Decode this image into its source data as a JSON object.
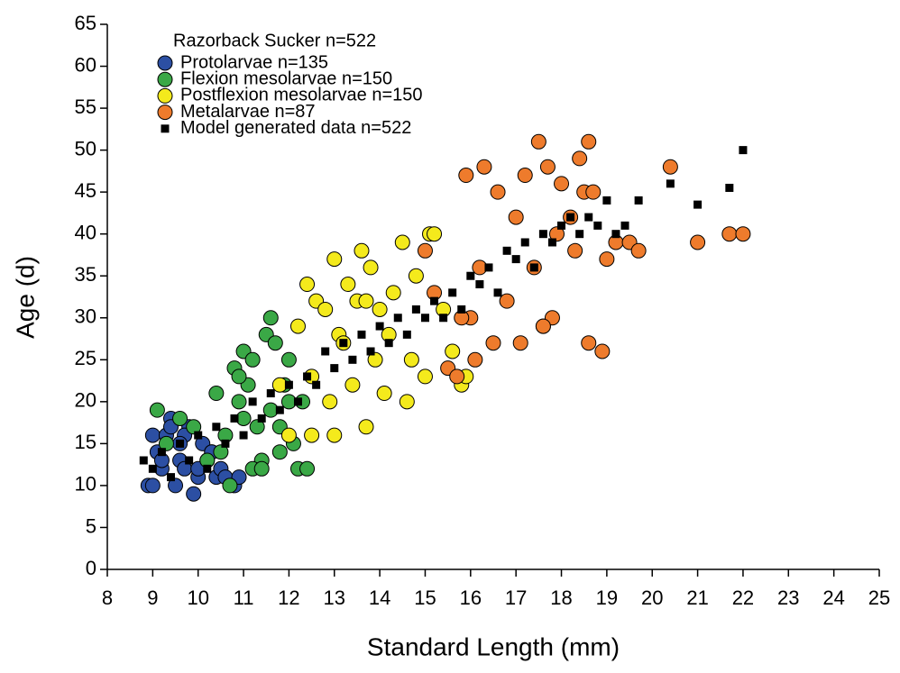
{
  "chart_data": {
    "type": "scatter",
    "xlabel": "Standard Length (mm)",
    "ylabel": "Age (d)",
    "legend_title": "Razorback Sucker n=522",
    "legend": "upper left",
    "xlim": [
      8,
      25
    ],
    "xticks": [
      8,
      9,
      10,
      11,
      12,
      13,
      14,
      15,
      16,
      17,
      18,
      19,
      20,
      21,
      22,
      23,
      24,
      25
    ],
    "ylim": [
      0,
      65
    ],
    "yticks": [
      0,
      5,
      10,
      15,
      20,
      25,
      30,
      35,
      40,
      45,
      50,
      55,
      60,
      65
    ],
    "series": [
      {
        "name": "Protolarvae n=135",
        "color": "#2c4fa3",
        "marker": "circle",
        "x": [
          8.9,
          9.0,
          9.1,
          9.2,
          9.3,
          9.4,
          9.5,
          9.6,
          9.7,
          9.8,
          9.9,
          10.0,
          10.1,
          10.2,
          10.3,
          10.4,
          10.5,
          10.6,
          10.8,
          9.0,
          9.4,
          9.7,
          10.0,
          10.3,
          9.2,
          9.6,
          10.9
        ],
        "y": [
          10,
          16,
          14,
          12,
          16,
          18,
          10,
          13,
          12,
          17,
          9,
          11,
          15,
          13,
          14,
          11,
          12,
          11,
          10,
          10,
          17,
          16,
          12,
          14,
          13,
          15,
          11
        ]
      },
      {
        "name": "Flexion mesolarvae n=150",
        "color": "#3aa846",
        "marker": "circle",
        "x": [
          9.1,
          9.3,
          9.6,
          9.9,
          10.2,
          10.4,
          10.6,
          10.7,
          10.8,
          10.9,
          11.0,
          11.0,
          11.1,
          11.2,
          11.3,
          11.4,
          11.5,
          11.6,
          11.7,
          11.8,
          11.9,
          12.0,
          12.1,
          12.2,
          12.3,
          12.4,
          11.2,
          10.9,
          11.6,
          12.0,
          11.4,
          10.5,
          11.8
        ],
        "y": [
          19,
          15,
          18,
          17,
          13,
          21,
          16,
          10,
          24,
          20,
          26,
          18,
          22,
          25,
          17,
          13,
          28,
          30,
          27,
          14,
          22,
          20,
          15,
          12,
          20,
          12,
          12,
          23,
          19,
          25,
          12,
          14,
          17
        ]
      },
      {
        "name": "Postflexion mesolarvae n=150",
        "color": "#f4ea1c",
        "marker": "circle",
        "x": [
          11.8,
          12.0,
          12.2,
          12.4,
          12.5,
          12.6,
          12.8,
          12.9,
          13.0,
          13.1,
          13.2,
          13.3,
          13.4,
          13.5,
          13.6,
          13.7,
          13.8,
          13.9,
          14.0,
          14.1,
          14.3,
          14.5,
          14.6,
          14.7,
          14.8,
          15.0,
          15.1,
          15.2,
          15.4,
          15.6,
          15.8,
          15.9,
          13.0,
          12.5,
          14.2,
          13.7
        ],
        "y": [
          22,
          16,
          29,
          34,
          23,
          32,
          31,
          20,
          37,
          28,
          27,
          34,
          22,
          32,
          38,
          17,
          36,
          25,
          31,
          21,
          33,
          39,
          20,
          25,
          35,
          23,
          40,
          40,
          31,
          26,
          22,
          23,
          16,
          16,
          28,
          32
        ]
      },
      {
        "name": "Metalarvae n=87",
        "color": "#ee7b2c",
        "marker": "circle",
        "x": [
          15.0,
          15.2,
          15.5,
          15.7,
          15.9,
          16.0,
          16.2,
          16.3,
          16.5,
          16.6,
          16.8,
          17.0,
          17.1,
          17.2,
          17.4,
          17.5,
          17.6,
          17.7,
          17.8,
          17.9,
          18.0,
          18.2,
          18.3,
          18.4,
          18.5,
          18.6,
          18.7,
          18.9,
          19.0,
          19.2,
          19.5,
          19.7,
          20.4,
          21.0,
          21.7,
          22.0,
          16.1,
          17.6,
          18.6,
          15.8
        ],
        "y": [
          38,
          33,
          24,
          23,
          47,
          30,
          36,
          48,
          27,
          45,
          32,
          42,
          27,
          47,
          36,
          51,
          29,
          48,
          30,
          40,
          46,
          42,
          38,
          49,
          45,
          51,
          45,
          26,
          37,
          39,
          39,
          38,
          48,
          39,
          40,
          40,
          25,
          29,
          27,
          30
        ]
      },
      {
        "name": "Model generated data n=522",
        "color": "#000000",
        "marker": "square",
        "x": [
          8.8,
          9.0,
          9.2,
          9.4,
          9.6,
          9.8,
          10.0,
          10.2,
          10.4,
          10.6,
          10.8,
          11.0,
          11.2,
          11.4,
          11.6,
          11.8,
          12.0,
          12.2,
          12.4,
          12.6,
          12.8,
          13.0,
          13.2,
          13.4,
          13.6,
          13.8,
          14.0,
          14.2,
          14.4,
          14.6,
          14.8,
          15.0,
          15.2,
          15.4,
          15.6,
          15.8,
          16.0,
          16.2,
          16.4,
          16.6,
          16.8,
          17.0,
          17.2,
          17.4,
          17.6,
          17.8,
          18.0,
          18.2,
          18.4,
          18.6,
          18.8,
          19.0,
          19.2,
          19.4,
          19.7,
          20.4,
          21.0,
          21.7,
          22.0
        ],
        "y": [
          13,
          12,
          14,
          11,
          15,
          13,
          16,
          12,
          17,
          15,
          18,
          16,
          20,
          18,
          21,
          19,
          22,
          20,
          23,
          22,
          26,
          24,
          27,
          25,
          28,
          26,
          29,
          27,
          30,
          28,
          31,
          30,
          32,
          30,
          33,
          31,
          35,
          34,
          36,
          33,
          38,
          37,
          39,
          36,
          40,
          39,
          41,
          42,
          40,
          42,
          41,
          44,
          40,
          41,
          44,
          46,
          43.5,
          45.5,
          50
        ]
      }
    ]
  }
}
